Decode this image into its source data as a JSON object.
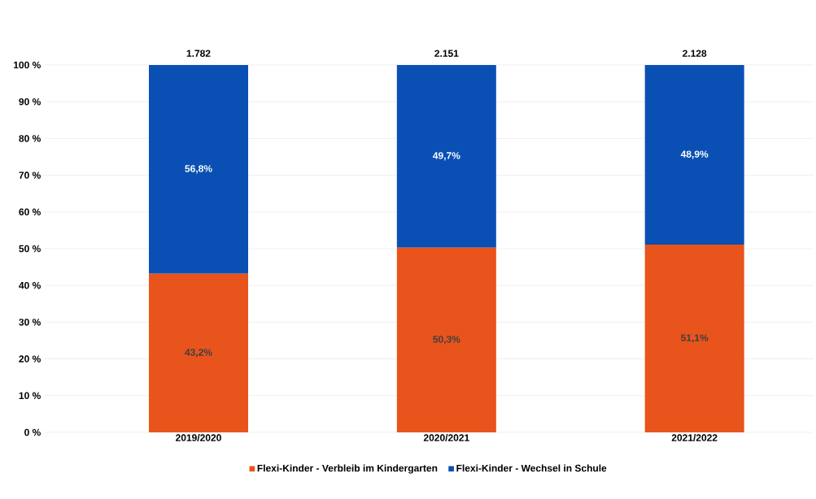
{
  "chart_data": {
    "type": "bar",
    "stacked": true,
    "categories": [
      "2019/2020",
      "2020/2021",
      "2021/2022"
    ],
    "series": [
      {
        "name": "Flexi-Kinder - Verbleib im Kindergarten",
        "color": "#e8541c",
        "values": [
          43.2,
          50.3,
          51.1
        ],
        "value_labels": [
          "43,2%",
          "50,3%",
          "51,1%"
        ]
      },
      {
        "name": "Flexi-Kinder - Wechsel in Schule",
        "color": "#0a50b4",
        "values": [
          56.8,
          49.7,
          48.9
        ],
        "value_labels": [
          "56,8%",
          "49,7%",
          "48,9%"
        ]
      }
    ],
    "annotations": [
      {
        "text": "1.782",
        "x": "2019/2020",
        "y": 100
      },
      {
        "text": "2.151",
        "x": "2020/2021",
        "y": 100
      },
      {
        "text": "2.128",
        "x": "2021/2022",
        "y": 100
      }
    ],
    "ylim": [
      0,
      100
    ],
    "yticks": [
      {
        "value": 0,
        "label": "0 %"
      },
      {
        "value": 10,
        "label": "10 %"
      },
      {
        "value": 20,
        "label": "20 %"
      },
      {
        "value": 30,
        "label": "30 %"
      },
      {
        "value": 40,
        "label": "40 %"
      },
      {
        "value": 50,
        "label": "50 %"
      },
      {
        "value": 60,
        "label": "60 %"
      },
      {
        "value": 70,
        "label": "70 %"
      },
      {
        "value": 80,
        "label": "80 %"
      },
      {
        "value": 90,
        "label": "90 %"
      },
      {
        "value": 100,
        "label": "100 %"
      }
    ],
    "grid": "y",
    "legend": "bottom"
  }
}
